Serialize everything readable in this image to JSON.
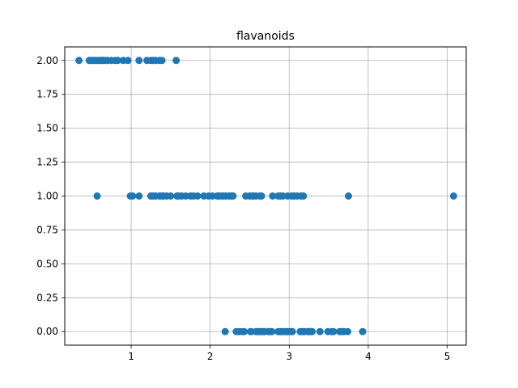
{
  "chart_data": {
    "type": "scatter",
    "title": "flavanoids",
    "xlabel": "",
    "ylabel": "",
    "xlim": [
      0.16,
      5.24
    ],
    "ylim": [
      -0.1,
      2.1
    ],
    "x_ticks": [
      1,
      2,
      3,
      4,
      5
    ],
    "x_tick_labels": [
      "1",
      "2",
      "3",
      "4",
      "5"
    ],
    "y_ticks": [
      0.0,
      0.25,
      0.5,
      0.75,
      1.0,
      1.25,
      1.5,
      1.75,
      2.0
    ],
    "y_tick_labels": [
      "0.00",
      "0.25",
      "0.50",
      "0.75",
      "1.00",
      "1.25",
      "1.50",
      "1.75",
      "2.00"
    ],
    "grid": true,
    "marker_color": "#1f77b4",
    "series": [
      {
        "points": [
          [
            0.34,
            2
          ],
          [
            0.47,
            2
          ],
          [
            0.5,
            2
          ],
          [
            0.52,
            2
          ],
          [
            0.55,
            2
          ],
          [
            0.58,
            2
          ],
          [
            0.6,
            2
          ],
          [
            0.63,
            2
          ],
          [
            0.65,
            2
          ],
          [
            0.68,
            2
          ],
          [
            0.7,
            2
          ],
          [
            0.75,
            2
          ],
          [
            0.8,
            2
          ],
          [
            0.83,
            2
          ],
          [
            0.9,
            2
          ],
          [
            0.96,
            2
          ],
          [
            1.1,
            2
          ],
          [
            1.2,
            2
          ],
          [
            1.25,
            2
          ],
          [
            1.28,
            2
          ],
          [
            1.31,
            2
          ],
          [
            1.36,
            2
          ],
          [
            1.39,
            2
          ],
          [
            1.57,
            2
          ],
          [
            0.57,
            1
          ],
          [
            0.99,
            1
          ],
          [
            1.02,
            1
          ],
          [
            1.1,
            1
          ],
          [
            1.25,
            1
          ],
          [
            1.28,
            1
          ],
          [
            1.31,
            1
          ],
          [
            1.36,
            1
          ],
          [
            1.39,
            1
          ],
          [
            1.41,
            1
          ],
          [
            1.45,
            1
          ],
          [
            1.5,
            1
          ],
          [
            1.58,
            1
          ],
          [
            1.6,
            1
          ],
          [
            1.64,
            1
          ],
          [
            1.69,
            1
          ],
          [
            1.75,
            1
          ],
          [
            1.79,
            1
          ],
          [
            1.84,
            1
          ],
          [
            1.92,
            1
          ],
          [
            1.98,
            1
          ],
          [
            2.03,
            1
          ],
          [
            2.09,
            1
          ],
          [
            2.11,
            1
          ],
          [
            2.14,
            1
          ],
          [
            2.17,
            1
          ],
          [
            2.2,
            1
          ],
          [
            2.24,
            1
          ],
          [
            2.27,
            1
          ],
          [
            2.29,
            1
          ],
          [
            2.45,
            1
          ],
          [
            2.5,
            1
          ],
          [
            2.53,
            1
          ],
          [
            2.55,
            1
          ],
          [
            2.58,
            1
          ],
          [
            2.63,
            1
          ],
          [
            2.65,
            1
          ],
          [
            2.79,
            1
          ],
          [
            2.86,
            1
          ],
          [
            2.89,
            1
          ],
          [
            2.92,
            1
          ],
          [
            2.98,
            1
          ],
          [
            3.03,
            1
          ],
          [
            3.06,
            1
          ],
          [
            3.1,
            1
          ],
          [
            3.15,
            1
          ],
          [
            3.18,
            1
          ],
          [
            3.75,
            1
          ],
          [
            5.08,
            1
          ],
          [
            2.19,
            0
          ],
          [
            2.33,
            0
          ],
          [
            2.37,
            0
          ],
          [
            2.41,
            0
          ],
          [
            2.43,
            0
          ],
          [
            2.51,
            0
          ],
          [
            2.52,
            0
          ],
          [
            2.58,
            0
          ],
          [
            2.61,
            0
          ],
          [
            2.63,
            0
          ],
          [
            2.65,
            0
          ],
          [
            2.68,
            0
          ],
          [
            2.69,
            0
          ],
          [
            2.74,
            0
          ],
          [
            2.76,
            0
          ],
          [
            2.78,
            0
          ],
          [
            2.86,
            0
          ],
          [
            2.88,
            0
          ],
          [
            2.9,
            0
          ],
          [
            2.91,
            0
          ],
          [
            2.94,
            0
          ],
          [
            2.97,
            0
          ],
          [
            2.98,
            0
          ],
          [
            3.0,
            0
          ],
          [
            3.03,
            0
          ],
          [
            3.04,
            0
          ],
          [
            3.14,
            0
          ],
          [
            3.15,
            0
          ],
          [
            3.17,
            0
          ],
          [
            3.19,
            0
          ],
          [
            3.23,
            0
          ],
          [
            3.25,
            0
          ],
          [
            3.27,
            0
          ],
          [
            3.29,
            0
          ],
          [
            3.39,
            0
          ],
          [
            3.49,
            0
          ],
          [
            3.54,
            0
          ],
          [
            3.56,
            0
          ],
          [
            3.64,
            0
          ],
          [
            3.67,
            0
          ],
          [
            3.69,
            0
          ],
          [
            3.74,
            0
          ],
          [
            3.93,
            0
          ]
        ]
      }
    ]
  }
}
